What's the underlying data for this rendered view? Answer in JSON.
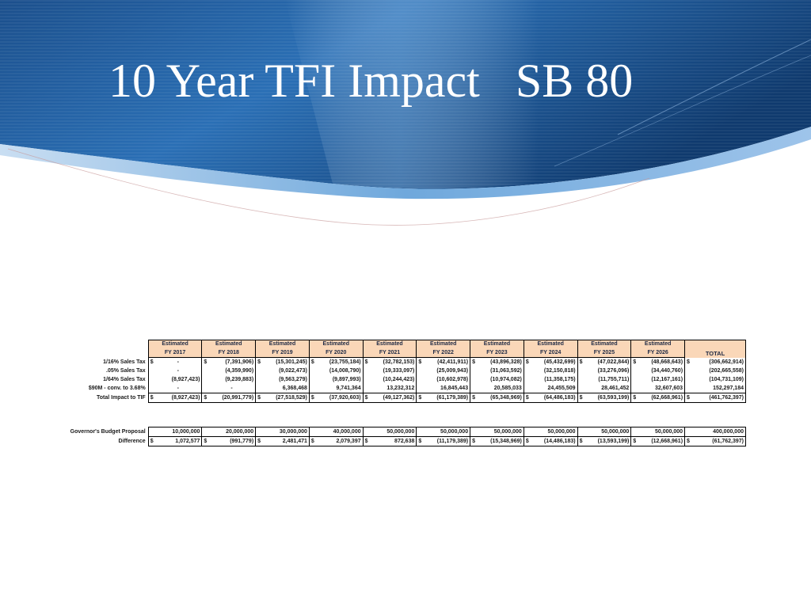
{
  "slide": {
    "title": "10 Year TFI Impact   SB 80"
  },
  "table": {
    "header_top": [
      "Estimated",
      "Estimated",
      "Estimated",
      "Estimated",
      "Estimated",
      "Estimated",
      "Estimated",
      "Estimated",
      "Estimated",
      "Estimated"
    ],
    "header_years": [
      "FY 2017",
      "FY 2018",
      "FY 2019",
      "FY 2020",
      "FY 2021",
      "FY 2022",
      "FY 2023",
      "FY 2024",
      "FY 2025",
      "FY 2026"
    ],
    "header_total": "TOTAL",
    "rows": [
      {
        "label": "1/16% Sales Tax",
        "cells": [
          {
            "d": "$",
            "v": "-"
          },
          {
            "d": "$",
            "v": "(7,391,906)"
          },
          {
            "d": "$",
            "v": "(15,301,245)"
          },
          {
            "d": "$",
            "v": "(23,755,184)"
          },
          {
            "d": "$",
            "v": "(32,782,153)"
          },
          {
            "d": "$",
            "v": "(42,411,911)"
          },
          {
            "d": "$",
            "v": "(43,896,328)"
          },
          {
            "d": "$",
            "v": "(45,432,699)"
          },
          {
            "d": "$",
            "v": "(47,022,844)"
          },
          {
            "d": "$",
            "v": "(48,668,643)"
          }
        ],
        "total": {
          "d": "$",
          "v": "(306,662,914)"
        }
      },
      {
        "label": ".05% Sales Tax",
        "cells": [
          {
            "d": "",
            "v": "-"
          },
          {
            "d": "",
            "v": "(4,359,990)"
          },
          {
            "d": "",
            "v": "(9,022,473)"
          },
          {
            "d": "",
            "v": "(14,008,790)"
          },
          {
            "d": "",
            "v": "(19,333,097)"
          },
          {
            "d": "",
            "v": "(25,009,943)"
          },
          {
            "d": "",
            "v": "(31,063,592)"
          },
          {
            "d": "",
            "v": "(32,150,818)"
          },
          {
            "d": "",
            "v": "(33,276,096)"
          },
          {
            "d": "",
            "v": "(34,440,760)"
          }
        ],
        "total": {
          "d": "",
          "v": "(202,665,558)"
        }
      },
      {
        "label": "1/64% Sales Tax",
        "cells": [
          {
            "d": "",
            "v": "(8,927,423)"
          },
          {
            "d": "",
            "v": "(9,239,883)"
          },
          {
            "d": "",
            "v": "(9,563,279)"
          },
          {
            "d": "",
            "v": "(9,897,993)"
          },
          {
            "d": "",
            "v": "(10,244,423)"
          },
          {
            "d": "",
            "v": "(10,602,978)"
          },
          {
            "d": "",
            "v": "(10,974,082)"
          },
          {
            "d": "",
            "v": "(11,358,175)"
          },
          {
            "d": "",
            "v": "(11,755,711)"
          },
          {
            "d": "",
            "v": "(12,167,161)"
          }
        ],
        "total": {
          "d": "",
          "v": "(104,731,109)"
        }
      },
      {
        "label": "$90M - conv. to 3.68%",
        "cells": [
          {
            "d": "",
            "v": "-"
          },
          {
            "d": "",
            "v": "-"
          },
          {
            "d": "",
            "v": "6,368,468"
          },
          {
            "d": "",
            "v": "9,741,364"
          },
          {
            "d": "",
            "v": "13,232,312"
          },
          {
            "d": "",
            "v": "16,845,443"
          },
          {
            "d": "",
            "v": "20,585,033"
          },
          {
            "d": "",
            "v": "24,455,509"
          },
          {
            "d": "",
            "v": "28,461,452"
          },
          {
            "d": "",
            "v": "32,607,603"
          }
        ],
        "total": {
          "d": "",
          "v": "152,297,184"
        }
      },
      {
        "label": "Total Impact to TIF",
        "cells": [
          {
            "d": "$",
            "v": "(8,927,423)"
          },
          {
            "d": "$",
            "v": "(20,991,779)"
          },
          {
            "d": "$",
            "v": "(27,518,529)"
          },
          {
            "d": "$",
            "v": "(37,920,603)"
          },
          {
            "d": "$",
            "v": "(49,127,362)"
          },
          {
            "d": "$",
            "v": "(61,179,389)"
          },
          {
            "d": "$",
            "v": "(65,348,969)"
          },
          {
            "d": "$",
            "v": "(64,486,183)"
          },
          {
            "d": "$",
            "v": "(63,593,199)"
          },
          {
            "d": "$",
            "v": "(62,668,961)"
          }
        ],
        "total": {
          "d": "$",
          "v": "(461,762,397)"
        }
      }
    ],
    "proposal_rows": [
      {
        "label": "Governor's Budget Proposal",
        "cells": [
          {
            "d": "",
            "v": "10,000,000"
          },
          {
            "d": "",
            "v": "20,000,000"
          },
          {
            "d": "",
            "v": "30,000,000"
          },
          {
            "d": "",
            "v": "40,000,000"
          },
          {
            "d": "",
            "v": "50,000,000"
          },
          {
            "d": "",
            "v": "50,000,000"
          },
          {
            "d": "",
            "v": "50,000,000"
          },
          {
            "d": "",
            "v": "50,000,000"
          },
          {
            "d": "",
            "v": "50,000,000"
          },
          {
            "d": "",
            "v": "50,000,000"
          }
        ],
        "total": {
          "d": "",
          "v": "400,000,000"
        }
      },
      {
        "label": "Difference",
        "cells": [
          {
            "d": "$",
            "v": "1,072,577"
          },
          {
            "d": "$",
            "v": "(991,779)"
          },
          {
            "d": "$",
            "v": "2,481,471"
          },
          {
            "d": "$",
            "v": "2,079,397"
          },
          {
            "d": "$",
            "v": "872,638"
          },
          {
            "d": "$",
            "v": "(11,179,389)"
          },
          {
            "d": "$",
            "v": "(15,348,969)"
          },
          {
            "d": "$",
            "v": "(14,486,183)"
          },
          {
            "d": "$",
            "v": "(13,593,199)"
          },
          {
            "d": "$",
            "v": "(12,668,961)"
          }
        ],
        "total": {
          "d": "$",
          "v": "(61,762,397)"
        }
      }
    ]
  }
}
